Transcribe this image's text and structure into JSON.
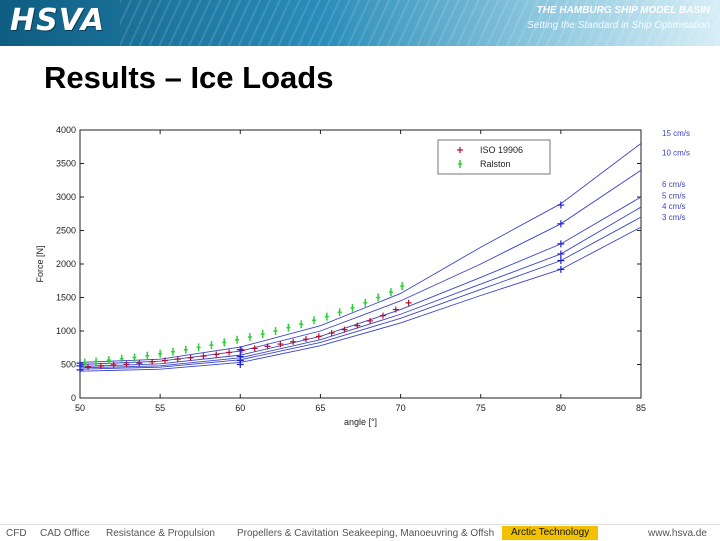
{
  "header": {
    "logo_text": "HSVA",
    "title": "THE HAMBURG SHIP MODEL BASIN",
    "subtitle": "Setting the Standard in Ship Optimisation"
  },
  "slide": {
    "title": "Results – Ice Loads"
  },
  "footer": {
    "items": [
      "CFD",
      "CAD Office",
      "Resistance & Propulsion",
      "Propellers & Cavitation",
      "Seakeeping, Manoeuvring & Offsh",
      "Arctic Technology",
      "www.hsva.de"
    ]
  },
  "colors": {
    "model": "#3b45c8",
    "iso": "#b01030",
    "ralston": "#2fcf3a",
    "blue_marker": "#1f22c8"
  },
  "chart_data": {
    "type": "scatter",
    "xlabel": "angle [°]",
    "ylabel": "Force [N]",
    "xlim": [
      50,
      85
    ],
    "ylim": [
      0,
      4000
    ],
    "xticks": [
      50,
      55,
      60,
      65,
      70,
      75,
      80,
      85
    ],
    "yticks": [
      0,
      500,
      1000,
      1500,
      2000,
      2500,
      3000,
      3500,
      4000
    ],
    "grid": false,
    "legend": {
      "placement": "top-right",
      "entries": [
        "ISO 19906",
        "Ralston"
      ]
    },
    "curve_labels": [
      "15 cm/s",
      "10 cm/s",
      "6 cm/s",
      "5 cm/s",
      "4 cm/s",
      "3 cm/s"
    ],
    "series": [
      {
        "name": "ISO 19906",
        "marker": "+",
        "x": [
          50.5,
          51.3,
          52.1,
          52.9,
          53.7,
          54.5,
          55.3,
          56.1,
          56.9,
          57.7,
          58.5,
          59.3,
          60.1,
          60.9,
          61.7,
          62.5,
          63.3,
          64.1,
          64.9,
          65.7,
          66.5,
          67.3,
          68.1,
          68.9,
          69.7,
          70.5
        ],
        "y": [
          465,
          480,
          495,
          505,
          520,
          540,
          560,
          580,
          600,
          625,
          650,
          680,
          710,
          740,
          770,
          805,
          840,
          880,
          920,
          970,
          1020,
          1080,
          1150,
          1230,
          1320,
          1420
        ]
      },
      {
        "name": "Ralston",
        "marker": "|",
        "x": [
          50.3,
          51.0,
          51.8,
          52.6,
          53.4,
          54.2,
          55.0,
          55.8,
          56.6,
          57.4,
          58.2,
          59.0,
          59.8,
          60.6,
          61.4,
          62.2,
          63.0,
          63.8,
          64.6,
          65.4,
          66.2,
          67.0,
          67.8,
          68.6,
          69.4,
          70.1
        ],
        "y": [
          530,
          545,
          565,
          585,
          605,
          630,
          660,
          690,
          720,
          755,
          790,
          830,
          870,
          910,
          955,
          1000,
          1050,
          1100,
          1160,
          1215,
          1280,
          1345,
          1420,
          1500,
          1580,
          1670
        ]
      },
      {
        "name": "",
        "marker": "+",
        "x": [
          50,
          50,
          50,
          60,
          60,
          60,
          60,
          80,
          80,
          80,
          80,
          80,
          80
        ],
        "y": [
          520,
          480,
          420,
          720,
          620,
          560,
          500,
          2880,
          2600,
          2300,
          2150,
          2050,
          1920
        ]
      }
    ],
    "curves": [
      {
        "name": "15 cm/s",
        "x": [
          50,
          55,
          60,
          65,
          70,
          75,
          80,
          85
        ],
        "y": [
          530,
          580,
          760,
          1080,
          1560,
          2250,
          2900,
          3800
        ]
      },
      {
        "name": "10 cm/s",
        "x": [
          50,
          55,
          60,
          65,
          70,
          75,
          80,
          85
        ],
        "y": [
          500,
          550,
          700,
          1000,
          1450,
          2000,
          2600,
          3400
        ]
      },
      {
        "name": "6 cm/s",
        "x": [
          50,
          55,
          60,
          65,
          70,
          75,
          80,
          85
        ],
        "y": [
          470,
          510,
          640,
          920,
          1320,
          1800,
          2300,
          3000
        ]
      },
      {
        "name": "5 cm/s",
        "x": [
          50,
          55,
          60,
          65,
          70,
          75,
          80,
          85
        ],
        "y": [
          450,
          480,
          600,
          870,
          1250,
          1700,
          2150,
          2850
        ]
      },
      {
        "name": "4 cm/s",
        "x": [
          50,
          55,
          60,
          65,
          70,
          75,
          80,
          85
        ],
        "y": [
          430,
          460,
          570,
          830,
          1190,
          1620,
          2050,
          2700
        ]
      },
      {
        "name": "3 cm/s",
        "x": [
          50,
          55,
          60,
          65,
          70,
          75,
          80,
          85
        ],
        "y": [
          400,
          430,
          530,
          780,
          1120,
          1530,
          1920,
          2550
        ]
      }
    ]
  }
}
